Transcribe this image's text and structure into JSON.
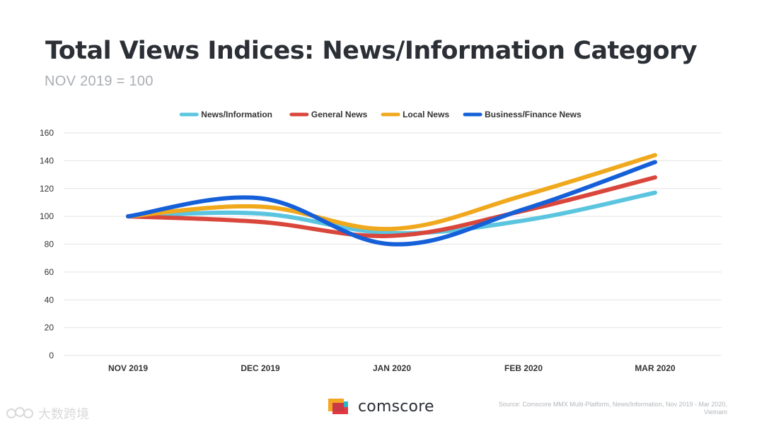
{
  "title": "Total Views Indices: News/Information Category",
  "subtitle": "NOV 2019 = 100",
  "brand": {
    "name": "comscore"
  },
  "source": "Source: Comscore MMX Multi-Platform, News/Information, Nov 2019 - Mar 2020, Vietnam",
  "watermark": {
    "text": "大数跨境"
  },
  "colors": {
    "news_information": "#5bc5e0",
    "general_news": "#d9463b",
    "local_news": "#f0a81d",
    "business_finance_news": "#1560d8",
    "logo_red": "#e03a3e",
    "logo_orange": "#f5a623",
    "logo_teal": "#2ab5c9"
  },
  "chart_data": {
    "type": "line",
    "title": "Total Views Indices: News/Information Category",
    "subtitle": "NOV 2019 = 100",
    "categories": [
      "NOV 2019",
      "DEC 2019",
      "JAN 2020",
      "FEB 2020",
      "MAR 2020"
    ],
    "ylim": [
      0,
      160
    ],
    "yticks": [
      0,
      20,
      40,
      60,
      80,
      100,
      120,
      140,
      160
    ],
    "grid": true,
    "legend_position": "top-center",
    "smooth": true,
    "series": [
      {
        "name": "News/Information",
        "values": [
          100,
          102,
          88,
          97,
          117
        ],
        "color": "#5bc5e0"
      },
      {
        "name": "General News",
        "values": [
          100,
          96,
          86,
          104,
          128
        ],
        "color": "#d9463b"
      },
      {
        "name": "Local News",
        "values": [
          100,
          107,
          91,
          115,
          144
        ],
        "color": "#f0a81d"
      },
      {
        "name": "Business/Finance News",
        "values": [
          100,
          113,
          80,
          105,
          139
        ],
        "color": "#1560d8"
      }
    ]
  }
}
